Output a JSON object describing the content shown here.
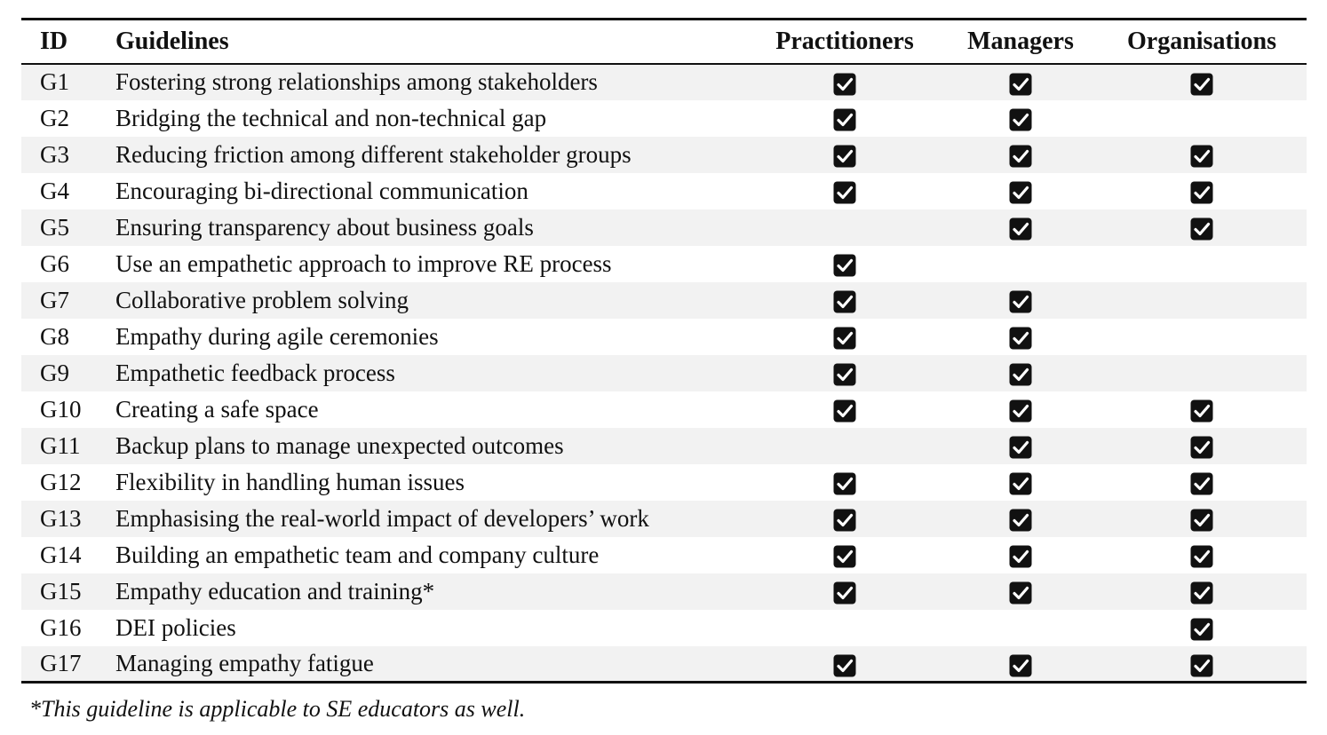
{
  "table": {
    "headers": {
      "id": "ID",
      "guidelines": "Guidelines",
      "practitioners": "Practitioners",
      "managers": "Managers",
      "organisations": "Organisations"
    },
    "rows": [
      {
        "id": "G1",
        "guideline": "Fostering strong relationships among stakeholders",
        "practitioners": true,
        "managers": true,
        "organisations": true
      },
      {
        "id": "G2",
        "guideline": "Bridging the technical and non-technical gap",
        "practitioners": true,
        "managers": true,
        "organisations": false
      },
      {
        "id": "G3",
        "guideline": "Reducing friction among different stakeholder groups",
        "practitioners": true,
        "managers": true,
        "organisations": true
      },
      {
        "id": "G4",
        "guideline": "Encouraging bi-directional communication",
        "practitioners": true,
        "managers": true,
        "organisations": true
      },
      {
        "id": "G5",
        "guideline": "Ensuring transparency about business goals",
        "practitioners": false,
        "managers": true,
        "organisations": true
      },
      {
        "id": "G6",
        "guideline": "Use an empathetic approach to improve RE process",
        "practitioners": true,
        "managers": false,
        "organisations": false
      },
      {
        "id": "G7",
        "guideline": "Collaborative problem solving",
        "practitioners": true,
        "managers": true,
        "organisations": false
      },
      {
        "id": "G8",
        "guideline": "Empathy during agile ceremonies",
        "practitioners": true,
        "managers": true,
        "organisations": false
      },
      {
        "id": "G9",
        "guideline": "Empathetic feedback process",
        "practitioners": true,
        "managers": true,
        "organisations": false
      },
      {
        "id": "G10",
        "guideline": "Creating a safe space",
        "practitioners": true,
        "managers": true,
        "organisations": true
      },
      {
        "id": "G11",
        "guideline": "Backup plans to manage unexpected outcomes",
        "practitioners": false,
        "managers": true,
        "organisations": true
      },
      {
        "id": "G12",
        "guideline": "Flexibility in handling human issues",
        "practitioners": true,
        "managers": true,
        "organisations": true
      },
      {
        "id": "G13",
        "guideline": "Emphasising the real-world impact of developers’ work",
        "practitioners": true,
        "managers": true,
        "organisations": true
      },
      {
        "id": "G14",
        "guideline": "Building an empathetic team and company culture",
        "practitioners": true,
        "managers": true,
        "organisations": true
      },
      {
        "id": "G15",
        "guideline": "Empathy education and training*",
        "practitioners": true,
        "managers": true,
        "organisations": true
      },
      {
        "id": "G16",
        "guideline": "DEI policies",
        "practitioners": false,
        "managers": false,
        "organisations": true
      },
      {
        "id": "G17",
        "guideline": "Managing empathy fatigue",
        "practitioners": true,
        "managers": true,
        "organisations": true
      }
    ]
  },
  "footnote": "*This guideline is applicable to SE educators as well.",
  "icons": {
    "checked": "checked-checkbox-icon"
  },
  "colors": {
    "text": "#111111",
    "stripe": "#f2f2f2",
    "check_fill": "#111111",
    "check_mark": "#ffffff"
  }
}
